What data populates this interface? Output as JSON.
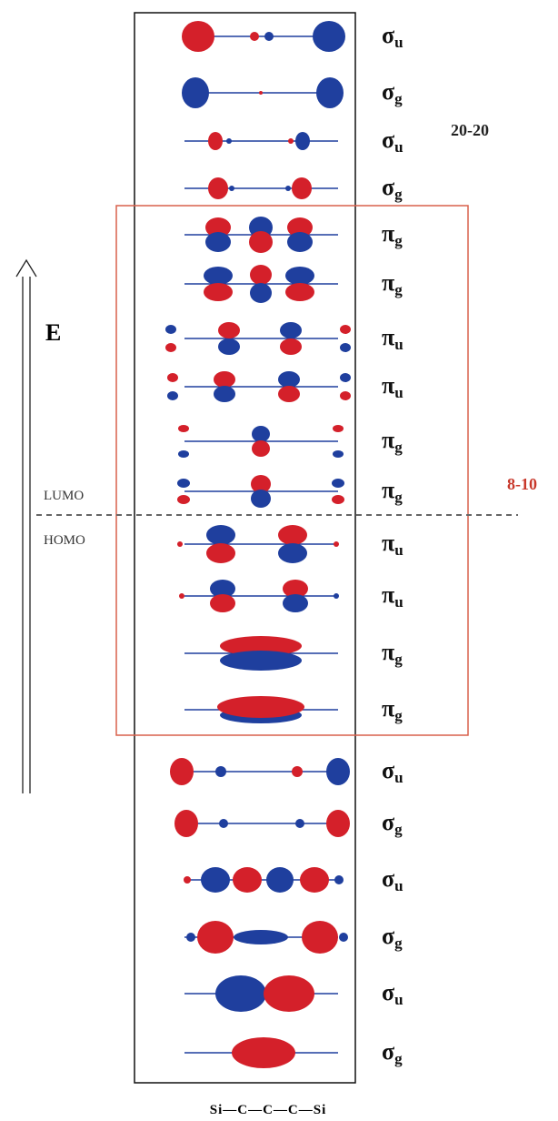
{
  "annotations": {
    "energy_label": "E",
    "lumo": "LUMO",
    "homo": "HOMO",
    "sigma_group": "20-20",
    "pi_group": "8-10"
  },
  "orbitals": [
    {
      "symbol": "σ",
      "subscript": "u"
    },
    {
      "symbol": "σ",
      "subscript": "g"
    },
    {
      "symbol": "σ",
      "subscript": "u"
    },
    {
      "symbol": "σ",
      "subscript": "g"
    },
    {
      "symbol": "π",
      "subscript": "g"
    },
    {
      "symbol": "π",
      "subscript": "g"
    },
    {
      "symbol": "π",
      "subscript": "u"
    },
    {
      "symbol": "π",
      "subscript": "u"
    },
    {
      "symbol": "π",
      "subscript": "g"
    },
    {
      "symbol": "π",
      "subscript": "g"
    },
    {
      "symbol": "π",
      "subscript": "u"
    },
    {
      "symbol": "π",
      "subscript": "u"
    },
    {
      "symbol": "π",
      "subscript": "g"
    },
    {
      "symbol": "π",
      "subscript": "g"
    },
    {
      "symbol": "σ",
      "subscript": "u"
    },
    {
      "symbol": "σ",
      "subscript": "g"
    },
    {
      "symbol": "σ",
      "subscript": "u"
    },
    {
      "symbol": "σ",
      "subscript": "g"
    },
    {
      "symbol": "σ",
      "subscript": "u"
    },
    {
      "symbol": "σ",
      "subscript": "g"
    }
  ],
  "molecule": "Si—C—C—C—Si"
}
